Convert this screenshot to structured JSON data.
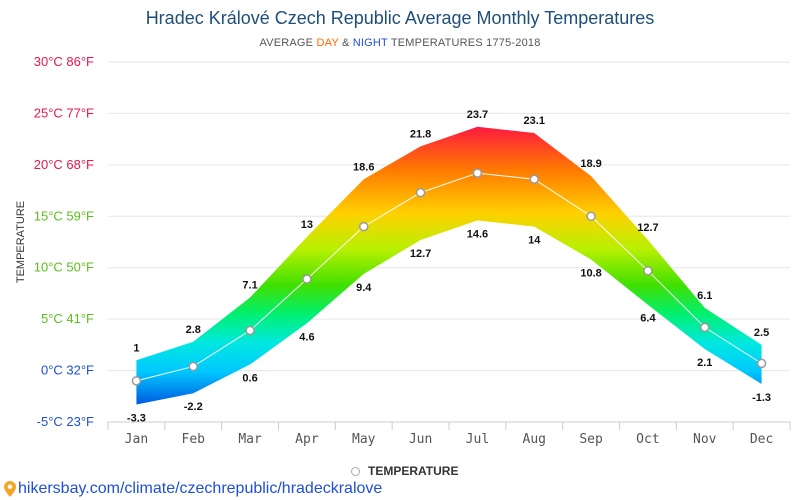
{
  "title": "Hradec Králové Czech Republic Average Monthly Temperatures",
  "subtitle": {
    "prefix": "AVERAGE ",
    "day": "DAY",
    "mid": " & ",
    "night": "NIGHT",
    "suffix": " TEMPERATURES 1775-2018"
  },
  "colors": {
    "title": "#1f4e79",
    "day_accent": "#ff6a00",
    "night_accent": "#1f4fd6",
    "link": "#1f4fd6",
    "axis_warm": "#e8174d",
    "axis_mild": "#5cbf1d",
    "axis_cold": "#1f4fd6"
  },
  "legend": {
    "label": "TEMPERATURE",
    "marker": "circle-marker-icon"
  },
  "footer": {
    "icon": "location-pin-icon",
    "url": "hikersbay.com/climate/czechrepublic/hradeckralove"
  },
  "chart_data": {
    "type": "area",
    "ylabel": "TEMPERATURE",
    "ylim": [
      -5,
      30
    ],
    "grid": true,
    "legend_position": "bottom-center",
    "categories": [
      "Jan",
      "Feb",
      "Mar",
      "Apr",
      "May",
      "Jun",
      "Jul",
      "Aug",
      "Sep",
      "Oct",
      "Nov",
      "Dec"
    ],
    "y_ticks": [
      {
        "value": 30,
        "label": "30°C 86°F"
      },
      {
        "value": 25,
        "label": "25°C 77°F"
      },
      {
        "value": 20,
        "label": "20°C 68°F"
      },
      {
        "value": 15,
        "label": "15°C 59°F"
      },
      {
        "value": 10,
        "label": "10°C 50°F"
      },
      {
        "value": 5,
        "label": "5°C 41°F"
      },
      {
        "value": 0,
        "label": "0°C 32°F"
      },
      {
        "value": -5,
        "label": "-5°C 23°F"
      }
    ],
    "day": [
      1,
      2.8,
      7.1,
      13,
      18.6,
      21.8,
      23.7,
      23.1,
      18.9,
      12.7,
      6.1,
      2.5
    ],
    "night": [
      -3.3,
      -2.2,
      0.6,
      4.6,
      9.4,
      12.7,
      14.6,
      14,
      10.8,
      6.4,
      2.1,
      -1.3
    ],
    "day_labels": [
      "1",
      "2.8",
      "7.1",
      "13",
      "18.6",
      "21.8",
      "23.7",
      "23.1",
      "18.9",
      "12.7",
      "6.1",
      "2.5"
    ],
    "night_labels": [
      "-3.3",
      "-2.2",
      "0.6",
      "4.6",
      "9.4",
      "12.7",
      "14.6",
      "14",
      "10.8",
      "6.4",
      "2.1",
      "-1.3"
    ],
    "series": [
      {
        "name": "TEMPERATURE",
        "values": [
          -1.0,
          0.4,
          3.9,
          8.9,
          14.0,
          17.3,
          19.2,
          18.6,
          15.0,
          9.7,
          4.2,
          0.7
        ]
      }
    ]
  }
}
